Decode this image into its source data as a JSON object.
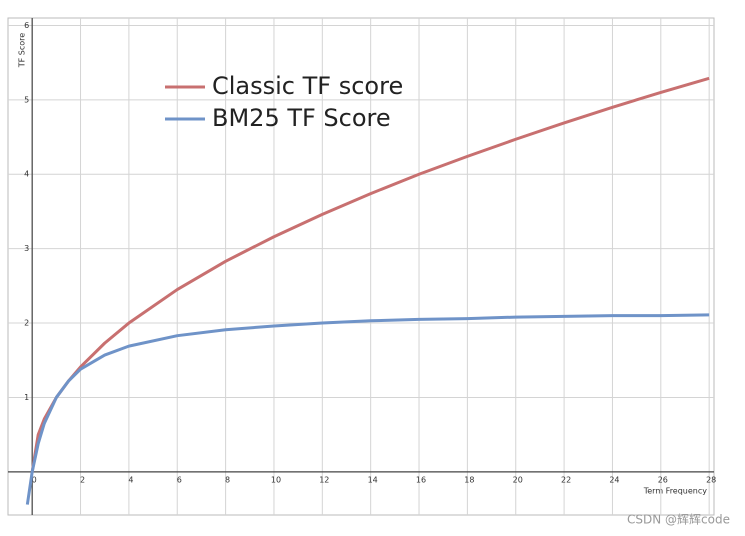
{
  "chart_data": {
    "type": "line",
    "x_label": "Term Frequency",
    "y_label": "TF Score",
    "x": [
      -0.2,
      0,
      0.25,
      0.5,
      1,
      1.5,
      2,
      3,
      4,
      6,
      8,
      10,
      12,
      14,
      16,
      18,
      20,
      22,
      24,
      26,
      28
    ],
    "series": [
      {
        "name": "Classic TF score",
        "color": "#c87070",
        "values": [
          null,
          0,
          0.5,
          0.71,
          1,
          1.22,
          1.41,
          1.73,
          2,
          2.45,
          2.83,
          3.16,
          3.46,
          3.74,
          4,
          4.24,
          4.47,
          4.69,
          4.9,
          5.1,
          5.29
        ]
      },
      {
        "name": "BM25 TF Score",
        "color": "#6f93c8",
        "values": [
          -0.44,
          0,
          0.38,
          0.65,
          1,
          1.22,
          1.38,
          1.57,
          1.69,
          1.83,
          1.91,
          1.96,
          2,
          2.03,
          2.05,
          2.06,
          2.08,
          2.09,
          2.1,
          2.1,
          2.11
        ]
      }
    ],
    "xlim": [
      -1,
      28.2
    ],
    "ylim": [
      -0.58,
      6.1
    ],
    "xticks": [
      0,
      2,
      4,
      6,
      8,
      10,
      12,
      14,
      16,
      18,
      20,
      22,
      24,
      26,
      28
    ],
    "yticks": [
      1,
      2,
      3,
      4,
      5,
      6
    ],
    "grid": true,
    "watermark": "CSDN @辉辉code"
  }
}
